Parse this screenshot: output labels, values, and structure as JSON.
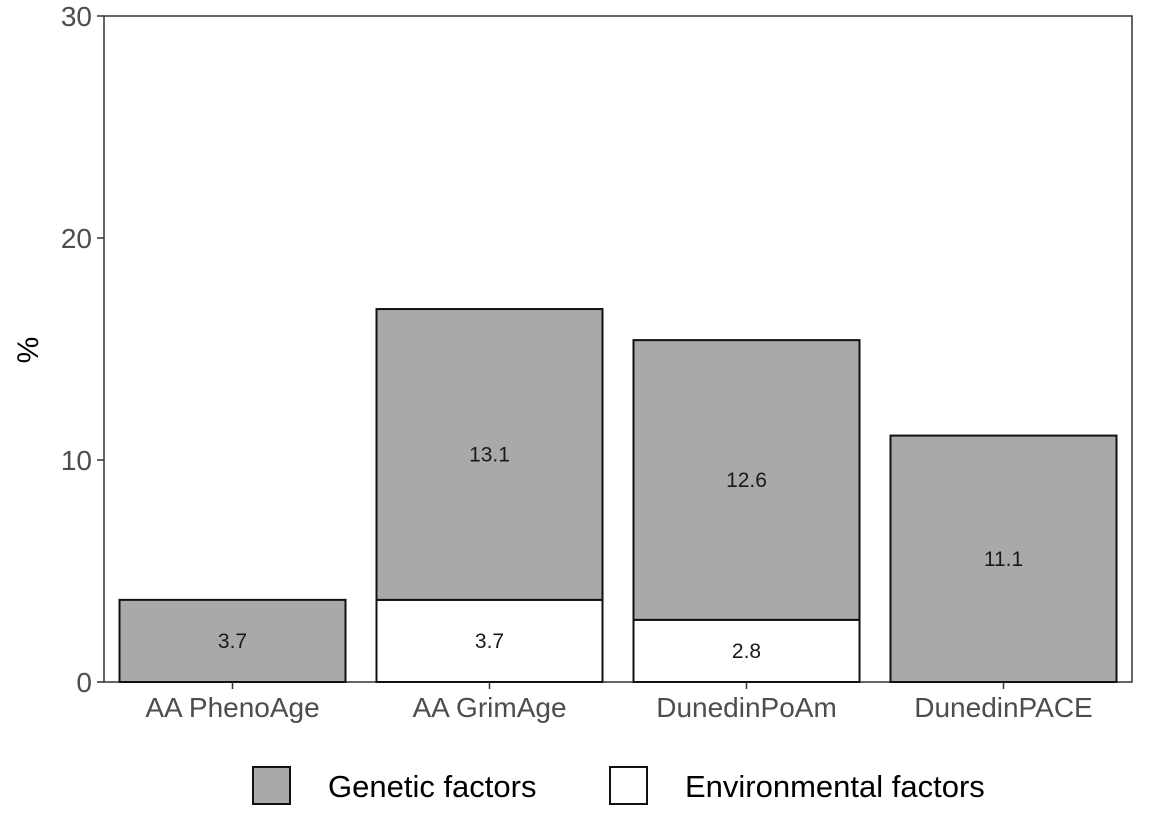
{
  "chart_data": {
    "type": "bar",
    "stacked": true,
    "categories": [
      "AA PhenoAge",
      "AA GrimAge",
      "DunedinPoAm",
      "DunedinPACE"
    ],
    "series": [
      {
        "name": "Environmental factors",
        "color": "#ffffff",
        "values": [
          0,
          3.7,
          2.8,
          0
        ],
        "labels": [
          "",
          "3.7",
          "2.8",
          ""
        ]
      },
      {
        "name": "Genetic factors",
        "color": "#a9a9a9",
        "values": [
          3.7,
          13.1,
          12.6,
          11.1
        ],
        "labels": [
          "3.7",
          "13.1",
          "12.6",
          "11.1"
        ]
      }
    ],
    "legend_order": [
      "Genetic factors",
      "Environmental factors"
    ],
    "ylabel": "%",
    "xlabel": "",
    "ylim": [
      0,
      30
    ],
    "yticks": [
      "0",
      "10",
      "20",
      "30"
    ],
    "grid": false,
    "legend_position": "bottom"
  }
}
